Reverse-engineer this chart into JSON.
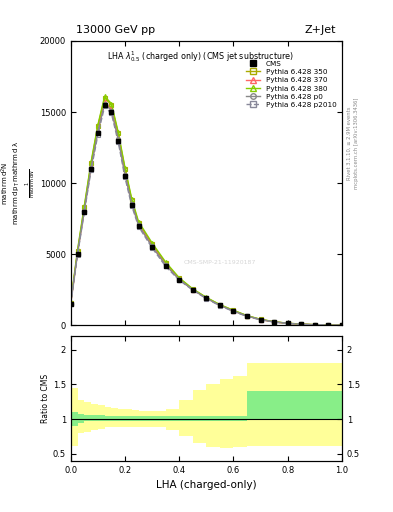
{
  "title_top": "13000 GeV pp",
  "title_right": "Z+Jet",
  "panel_title": "LHA $\\lambda^{1}_{0.5}$ (charged only) (CMS jet substructure)",
  "ylabel_main": "$\\frac{1}{\\mathrm{d}\\sigma} \\frac{\\mathrm{d}N}{\\mathrm{d}p_T \\mathrm{d}\\lambda}$",
  "ylabel_ratio": "Ratio to CMS",
  "xlabel": "LHA (charged-only)",
  "right_label1": "Rivet 3.1.10, ≥ 2.9M events",
  "right_label2": "mcplots.cern.ch [arXiv:1306.3436]",
  "watermark": "CMS-SMP-21-11920187",
  "xlim": [
    0,
    1
  ],
  "ylim_main": [
    0,
    20000
  ],
  "ylim_ratio_lo": 0.4,
  "ylim_ratio_hi": 2.2,
  "x_data": [
    0.0,
    0.025,
    0.05,
    0.075,
    0.1,
    0.125,
    0.15,
    0.175,
    0.2,
    0.225,
    0.25,
    0.3,
    0.35,
    0.4,
    0.45,
    0.5,
    0.55,
    0.6,
    0.65,
    0.7,
    0.75,
    0.8,
    0.85,
    0.9,
    0.95,
    1.0
  ],
  "cms_y": [
    1500,
    5000,
    8000,
    11000,
    13500,
    15500,
    15000,
    13000,
    10500,
    8500,
    7000,
    5500,
    4200,
    3200,
    2500,
    1900,
    1400,
    1000,
    650,
    400,
    240,
    140,
    80,
    45,
    20,
    5
  ],
  "p350_y": [
    1600,
    5200,
    8300,
    11400,
    14000,
    16000,
    15500,
    13500,
    11000,
    8800,
    7200,
    5700,
    4400,
    3300,
    2550,
    1950,
    1450,
    1050,
    680,
    420,
    255,
    150,
    90,
    50,
    25,
    8
  ],
  "p370_y": [
    1550,
    5100,
    8150,
    11200,
    13700,
    15700,
    15200,
    13200,
    10700,
    8600,
    7100,
    5600,
    4300,
    3250,
    2520,
    1920,
    1420,
    1020,
    660,
    410,
    245,
    145,
    85,
    47,
    22,
    6
  ],
  "p380_y": [
    1650,
    5300,
    8400,
    11500,
    14100,
    16100,
    15600,
    13600,
    11100,
    8900,
    7300,
    5800,
    4450,
    3350,
    2570,
    1970,
    1460,
    1060,
    690,
    430,
    260,
    155,
    92,
    52,
    27,
    9
  ],
  "p0_y": [
    1520,
    5050,
    8050,
    11100,
    13600,
    15600,
    15100,
    13100,
    10600,
    8550,
    7050,
    5550,
    4250,
    3220,
    2510,
    1910,
    1410,
    1010,
    655,
    405,
    242,
    142,
    82,
    46,
    21,
    6
  ],
  "p2010_y": [
    1480,
    4950,
    7950,
    10900,
    13400,
    15400,
    14900,
    12900,
    10400,
    8400,
    6950,
    5450,
    4150,
    3180,
    2480,
    1880,
    1380,
    980,
    630,
    390,
    235,
    138,
    78,
    44,
    19,
    5
  ],
  "cms_color": "#000000",
  "p350_color": "#aaaa00",
  "p370_color": "#ff6666",
  "p380_color": "#88cc00",
  "p0_color": "#888888",
  "p2010_color": "#888899",
  "ratio_x_edges": [
    0.0,
    0.025,
    0.05,
    0.075,
    0.1,
    0.125,
    0.15,
    0.175,
    0.2,
    0.225,
    0.25,
    0.3,
    0.35,
    0.4,
    0.45,
    0.5,
    0.55,
    0.6,
    0.65,
    0.7,
    0.75,
    0.8,
    0.85,
    0.9,
    0.95,
    1.0
  ],
  "ratio_green_lo": [
    0.9,
    0.95,
    0.97,
    0.97,
    0.97,
    0.97,
    0.97,
    0.97,
    0.97,
    0.97,
    0.97,
    0.97,
    0.97,
    0.97,
    0.97,
    0.97,
    0.97,
    0.97,
    1.0,
    1.0,
    1.0,
    1.0,
    1.0,
    1.0,
    1.0
  ],
  "ratio_green_hi": [
    1.1,
    1.08,
    1.06,
    1.06,
    1.06,
    1.05,
    1.05,
    1.04,
    1.04,
    1.04,
    1.04,
    1.04,
    1.04,
    1.04,
    1.05,
    1.05,
    1.05,
    1.05,
    1.4,
    1.4,
    1.4,
    1.4,
    1.4,
    1.4,
    1.4
  ],
  "ratio_yellow_lo": [
    0.62,
    0.8,
    0.82,
    0.84,
    0.86,
    0.88,
    0.88,
    0.88,
    0.88,
    0.88,
    0.88,
    0.88,
    0.85,
    0.75,
    0.65,
    0.6,
    0.58,
    0.6,
    0.62,
    0.62,
    0.62,
    0.62,
    0.62,
    0.62,
    0.62
  ],
  "ratio_yellow_hi": [
    1.45,
    1.28,
    1.24,
    1.22,
    1.2,
    1.18,
    1.16,
    1.15,
    1.14,
    1.13,
    1.12,
    1.12,
    1.15,
    1.28,
    1.42,
    1.5,
    1.58,
    1.62,
    1.8,
    1.8,
    1.8,
    1.8,
    1.8,
    1.8,
    1.8
  ],
  "main_yticks": [
    0,
    5000,
    10000,
    15000,
    20000
  ],
  "main_yticklabels": [
    "0",
    "5000",
    "10000",
    "15000",
    "20000"
  ]
}
